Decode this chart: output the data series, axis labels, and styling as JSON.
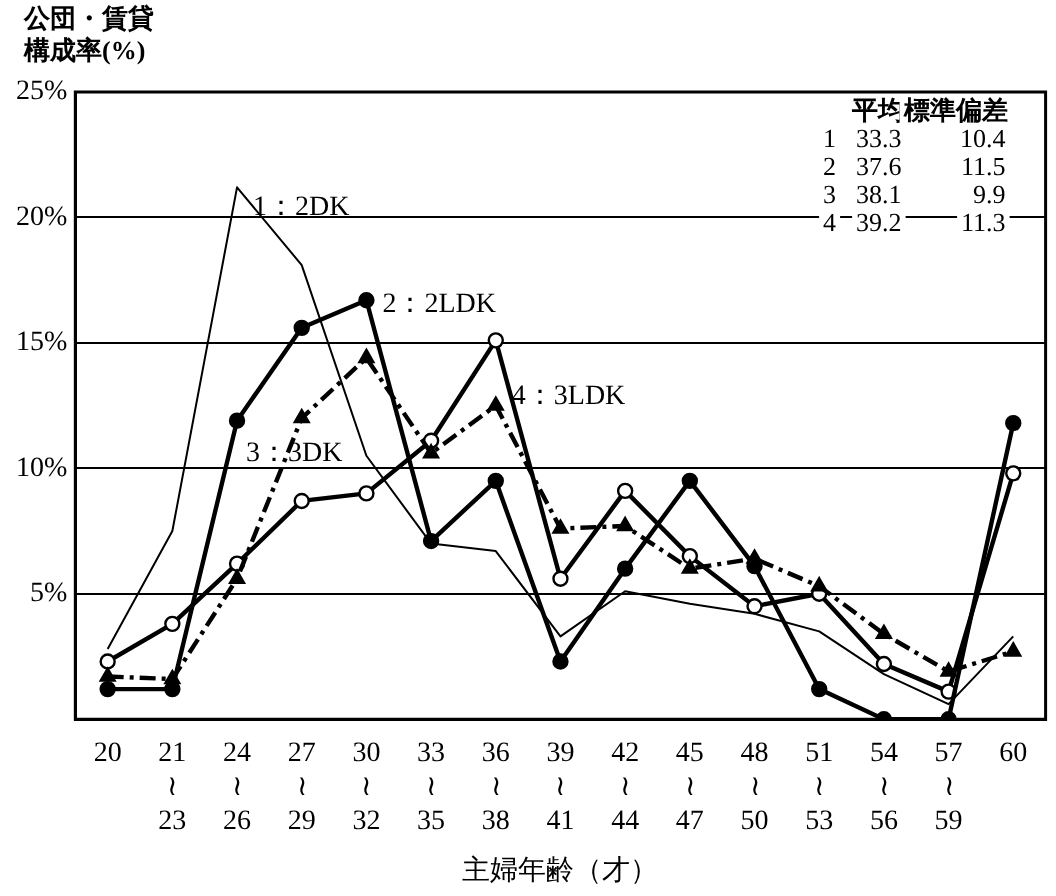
{
  "chart_data": {
    "type": "line",
    "ylabel": "公団・賃貸構成率(%)",
    "xlabel": "主婦年齢（才）",
    "categories": [
      "20",
      "21\n≀\n23",
      "24\n≀\n26",
      "27\n≀\n29",
      "30\n≀\n32",
      "33\n≀\n35",
      "36\n≀\n38",
      "39\n≀\n41",
      "42\n≀\n44",
      "45\n≀\n47",
      "48\n≀\n50",
      "51\n≀\n53",
      "54\n≀\n56",
      "57\n≀\n59",
      "60"
    ],
    "series": [
      {
        "name": "1：2DK",
        "color": "#000000",
        "marker": "none",
        "line_style": "solid",
        "values": [
          2.8,
          7.5,
          21.2,
          18.1,
          10.5,
          7.0,
          6.7,
          3.3,
          5.1,
          4.6,
          4.2,
          3.5,
          1.8,
          0.6,
          3.3
        ]
      },
      {
        "name": "2：2LDK",
        "color": "#000000",
        "marker": "circle",
        "line_style": "solid",
        "values": [
          1.2,
          1.2,
          11.9,
          15.6,
          16.7,
          7.1,
          9.5,
          2.3,
          6.0,
          9.5,
          6.1,
          1.2,
          0,
          0,
          11.8
        ]
      },
      {
        "name": "3：3DK",
        "color": "#000000",
        "marker": "triangle",
        "line_style": "dashdot",
        "values": [
          1.7,
          1.6,
          5.6,
          12.0,
          14.4,
          10.6,
          12.5,
          7.6,
          7.7,
          6.0,
          6.4,
          5.3,
          3.4,
          1.9,
          2.7
        ]
      },
      {
        "name": "4：3LDK",
        "color": "#000000",
        "marker": "circle",
        "line_style": "solid",
        "values": [
          2.3,
          3.8,
          6.2,
          8.7,
          9.0,
          11.1,
          15.1,
          5.6,
          9.1,
          6.5,
          4.5,
          5.0,
          2.2,
          1.1,
          9.8
        ]
      }
    ],
    "ylim": [
      0,
      25
    ],
    "yticks": [
      {
        "value": 0,
        "label": null
      },
      {
        "value": 5,
        "label": "5%"
      },
      {
        "value": 10,
        "label": "10%"
      },
      {
        "value": 15,
        "label": "15%"
      },
      {
        "value": 20,
        "label": "20%"
      },
      {
        "value": 25,
        "label": "25%"
      }
    ],
    "grid": "y",
    "legend": false,
    "annotations": [
      "\t平均\t標準偏差",
      "1\t33.3\t10.4",
      "2\t37.6\t11.5",
      "3\t38.1\t9.9",
      "4\t39.2\t11.3"
    ]
  }
}
